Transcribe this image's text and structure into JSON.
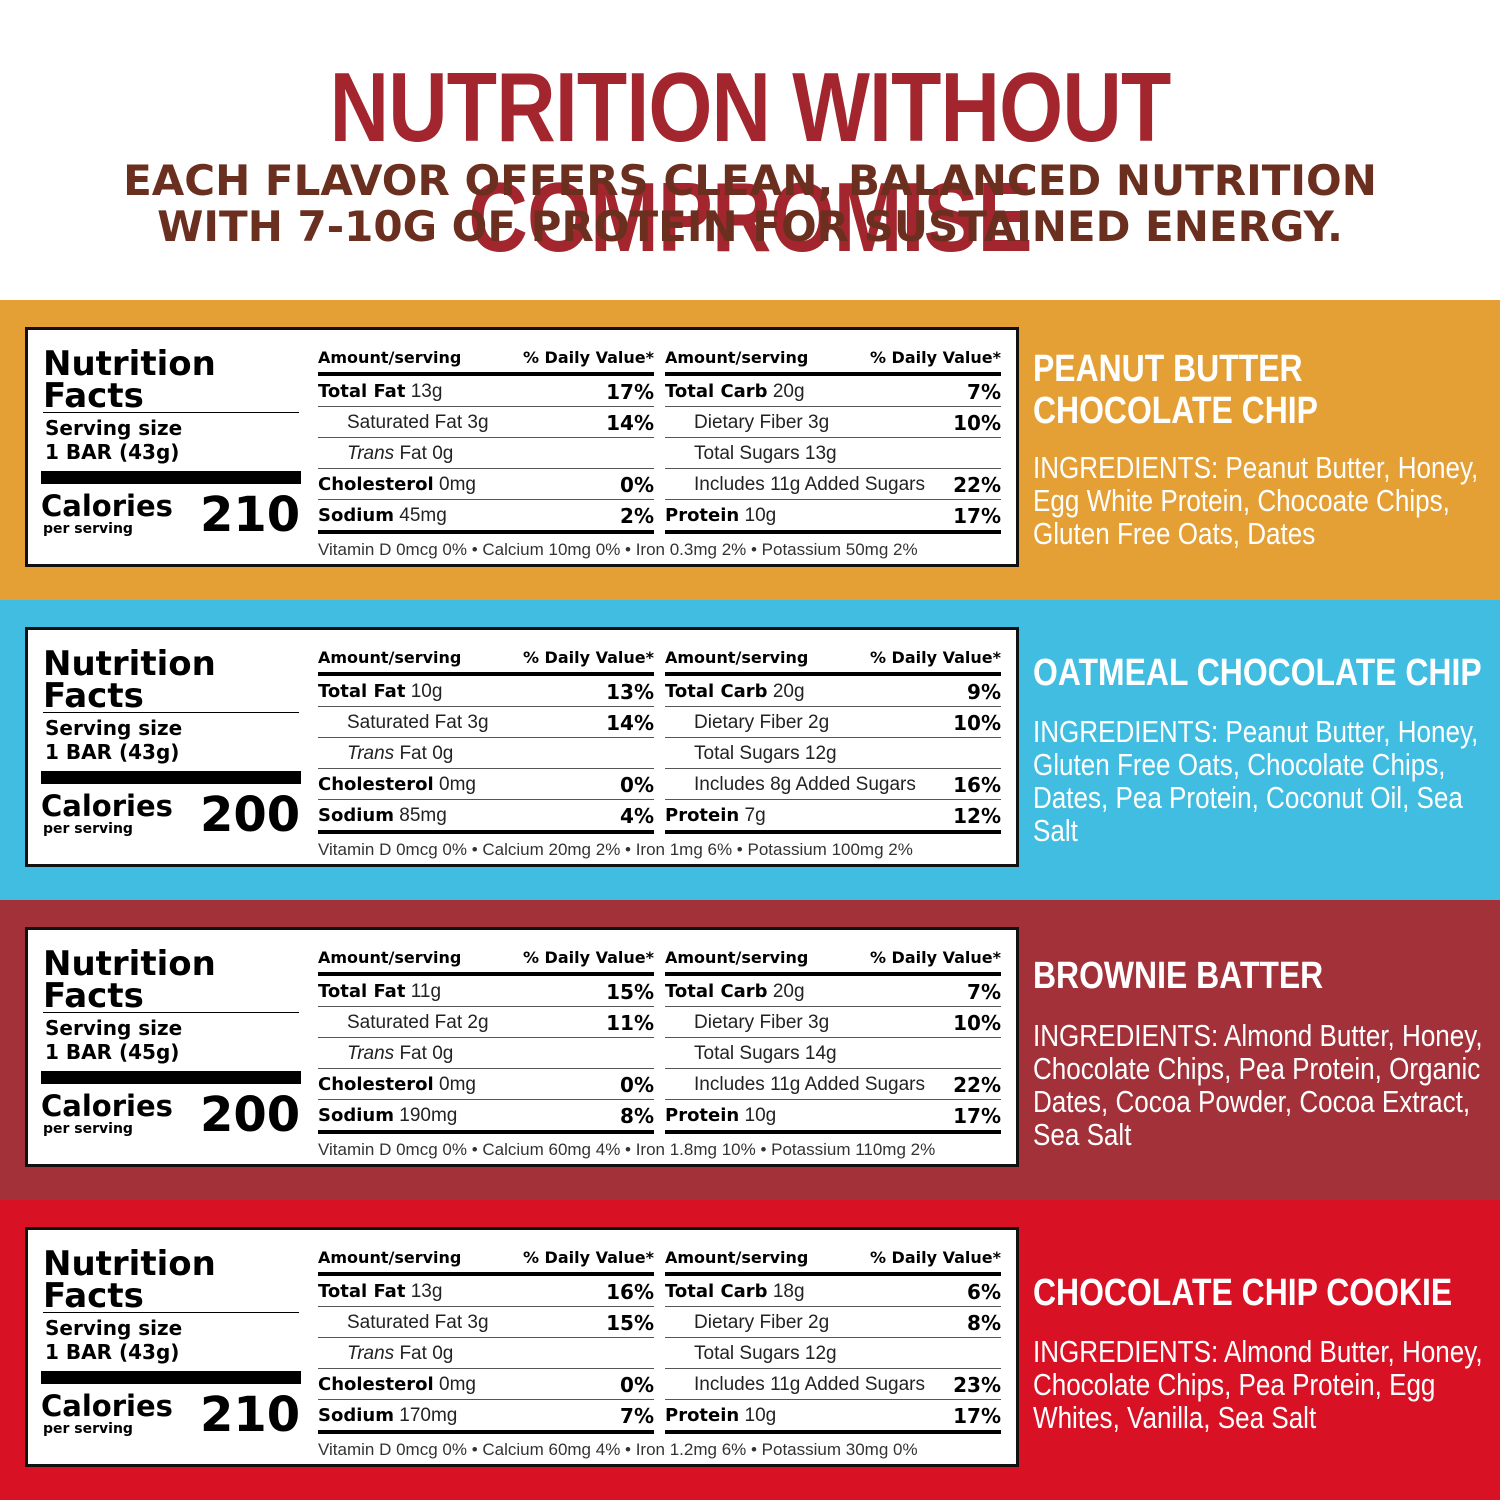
{
  "header": {
    "title": "NUTRITION WITHOUT COMPROMISE",
    "subtitle_line1": "EACH FLAVOR OFFERS CLEAN, BALANCED NUTRITION",
    "subtitle_line2": "WITH 7-10G OF PROTEIN FOR SUSTAINED ENERGY."
  },
  "common": {
    "nf_title1": "Nutrition",
    "nf_title2": "Facts",
    "serving_size_label": "Serving size",
    "calories_label": "Calories",
    "per_serving": "per serving",
    "amount_serving": "Amount/serving",
    "daily_value": "% Daily Value*",
    "total_fat": "Total Fat",
    "saturated_fat": "Saturated Fat",
    "trans": "Trans",
    "fat": "Fat",
    "cholesterol": "Cholesterol",
    "sodium": "Sodium",
    "total_carb": "Total Carb",
    "dietary_fiber": "Dietary Fiber",
    "total_sugars": "Total Sugars",
    "includes": "Includes",
    "added_sugars": "Added Sugars",
    "protein": "Protein"
  },
  "colors": {
    "headline": "#a3262e",
    "subtitle": "#6b2f20",
    "peanut_butter": "#e4a035",
    "oatmeal": "#40bde0",
    "brownie": "#a2313a",
    "cookie": "#d81124"
  },
  "products": [
    {
      "flavor_line1": "PEANUT BUTTER",
      "flavor_line2": "CHOCOLATE CHIP",
      "ingredients": "INGREDIENTS: Peanut Butter, Honey, Egg White Protein, Chocoate Chips, Gluten Free Oats, Dates",
      "serving_size": "1 BAR (43g)",
      "calories": "210",
      "total_fat": "13g",
      "total_fat_dv": "17%",
      "sat_fat": "3g",
      "sat_fat_dv": "14%",
      "trans_fat": "0g",
      "cholesterol": "0mg",
      "cholesterol_dv": "0%",
      "sodium": "45mg",
      "sodium_dv": "2%",
      "total_carb": "20g",
      "total_carb_dv": "7%",
      "fiber": "3g",
      "fiber_dv": "10%",
      "sugars": "13g",
      "added_sugars": "11g",
      "added_sugars_dv": "22%",
      "protein": "10g",
      "protein_dv": "17%",
      "vitamins": "Vitamin D 0mcg 0% • Calcium 10mg 0% • Iron 0.3mg 2% • Potassium 50mg 2%"
    },
    {
      "flavor_line1": "OATMEAL CHOCOLATE CHIP",
      "flavor_line2": "",
      "ingredients": "INGREDIENTS: Peanut Butter, Honey, Gluten Free Oats, Chocolate Chips, Dates, Pea Protein, Coconut Oil, Sea Salt",
      "serving_size": "1 BAR (43g)",
      "calories": "200",
      "total_fat": "10g",
      "total_fat_dv": "13%",
      "sat_fat": "3g",
      "sat_fat_dv": "14%",
      "trans_fat": "0g",
      "cholesterol": "0mg",
      "cholesterol_dv": "0%",
      "sodium": "85mg",
      "sodium_dv": "4%",
      "total_carb": "20g",
      "total_carb_dv": "9%",
      "fiber": "2g",
      "fiber_dv": "10%",
      "sugars": "12g",
      "added_sugars": "8g",
      "added_sugars_dv": "16%",
      "protein": "7g",
      "protein_dv": "12%",
      "vitamins": "Vitamin D 0mcg 0% • Calcium 20mg 2% • Iron 1mg 6% • Potassium 100mg 2%"
    },
    {
      "flavor_line1": "BROWNIE BATTER",
      "flavor_line2": "",
      "ingredients": "INGREDIENTS: Almond Butter, Honey, Chocolate Chips, Pea Protein, Organic Dates, Cocoa Powder, Cocoa Extract, Sea Salt",
      "serving_size": "1 BAR (45g)",
      "calories": "200",
      "total_fat": "11g",
      "total_fat_dv": "15%",
      "sat_fat": "2g",
      "sat_fat_dv": "11%",
      "trans_fat": "0g",
      "cholesterol": "0mg",
      "cholesterol_dv": "0%",
      "sodium": "190mg",
      "sodium_dv": "8%",
      "total_carb": "20g",
      "total_carb_dv": "7%",
      "fiber": "3g",
      "fiber_dv": "10%",
      "sugars": "14g",
      "added_sugars": "11g",
      "added_sugars_dv": "22%",
      "protein": "10g",
      "protein_dv": "17%",
      "vitamins": "Vitamin D 0mcg 0% • Calcium 60mg 4% • Iron 1.8mg 10% • Potassium 110mg 2%"
    },
    {
      "flavor_line1": "CHOCOLATE CHIP COOKIE",
      "flavor_line2": "",
      "ingredients": "INGREDIENTS: Almond Butter, Honey, Chocolate Chips, Pea Protein, Egg Whites, Vanilla, Sea Salt",
      "serving_size": "1 BAR (43g)",
      "calories": "210",
      "total_fat": "13g",
      "total_fat_dv": "16%",
      "sat_fat": "3g",
      "sat_fat_dv": "15%",
      "trans_fat": "0g",
      "cholesterol": "0mg",
      "cholesterol_dv": "0%",
      "sodium": "170mg",
      "sodium_dv": "7%",
      "total_carb": "18g",
      "total_carb_dv": "6%",
      "fiber": "2g",
      "fiber_dv": "8%",
      "sugars": "12g",
      "added_sugars": "11g",
      "added_sugars_dv": "23%",
      "protein": "10g",
      "protein_dv": "17%",
      "vitamins": "Vitamin D 0mcg 0% • Calcium 60mg 4% • Iron 1.2mg 6% • Potassium 30mg 0%"
    }
  ]
}
